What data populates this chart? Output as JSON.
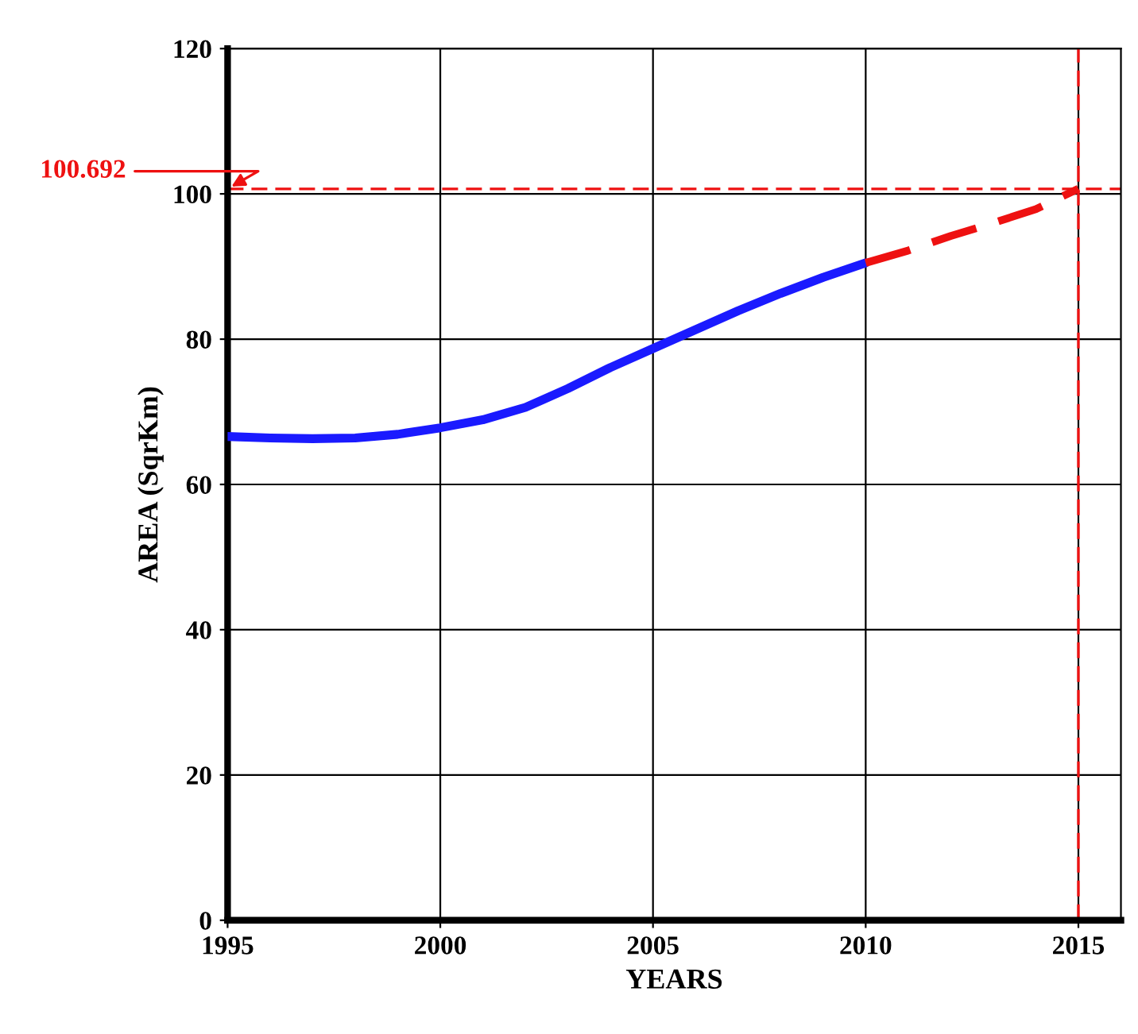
{
  "chart_data": {
    "type": "line",
    "xlabel": "YEARS",
    "ylabel": "AREA (SqrKm)",
    "xlim": [
      1995,
      2016
    ],
    "xticks": [
      1995,
      2000,
      2005,
      2010,
      2015
    ],
    "ylim": [
      0,
      120
    ],
    "yticks": [
      0,
      20,
      40,
      60,
      80,
      100,
      120
    ],
    "grid": true,
    "legend": false,
    "series": [
      {
        "color": "#1a1aff",
        "line_style": "solid",
        "x": [
          1995,
          1996,
          1997,
          1998,
          1999,
          2000,
          2001,
          2002,
          2003,
          2004,
          2005,
          2006,
          2007,
          2008,
          2009,
          2010
        ],
        "values": [
          66.6,
          66.4,
          66.3,
          66.4,
          66.9,
          67.8,
          68.9,
          70.6,
          73.2,
          76.1,
          78.7,
          81.3,
          83.9,
          86.3,
          88.5,
          90.5
        ]
      },
      {
        "color": "#ee1111",
        "line_style": "dashed",
        "x": [
          2010,
          2011,
          2012,
          2013,
          2014,
          2015
        ],
        "values": [
          90.5,
          92.2,
          94.2,
          96.0,
          97.9,
          100.7
        ]
      }
    ],
    "ref_lines": [
      {
        "axis": "y",
        "value": 100.692,
        "label": "100.692",
        "color": "#ee1111",
        "line_style": "dashed"
      },
      {
        "axis": "x",
        "value": 2015,
        "color": "#ee1111",
        "line_style": "dashed"
      }
    ]
  }
}
